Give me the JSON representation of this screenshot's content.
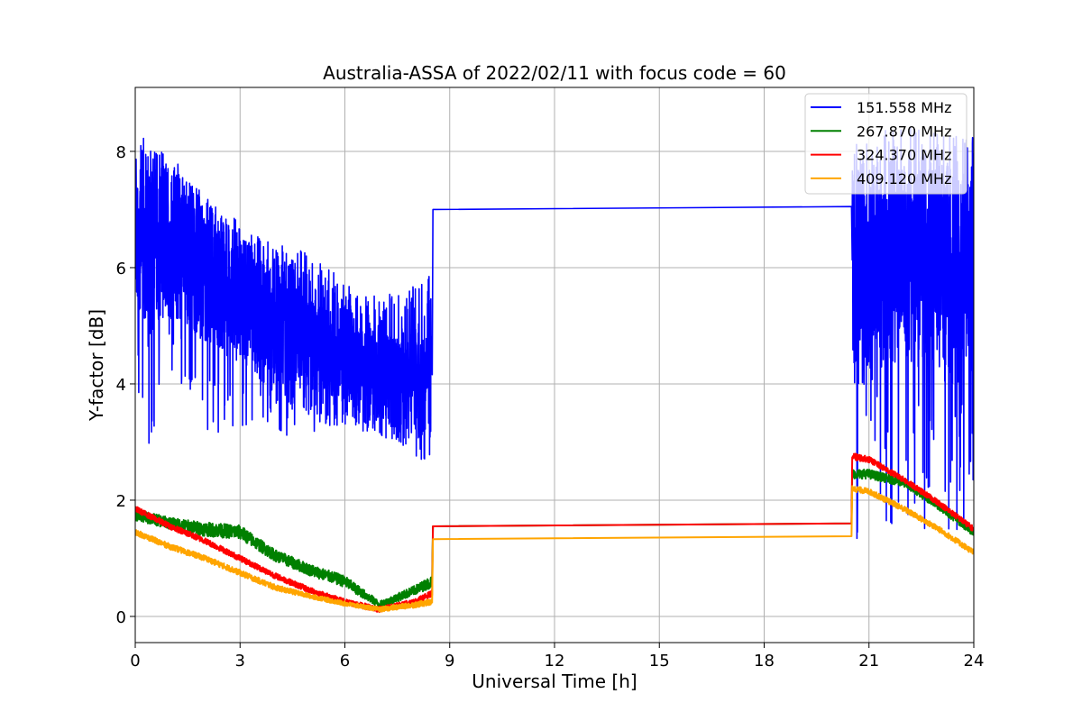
{
  "chart_data": {
    "type": "line",
    "title": "Australia-ASSA of 2022/02/11 with focus code = 60",
    "xlabel": "Universal Time [h]",
    "ylabel": "Y-factor [dB]",
    "xlim": [
      0,
      24
    ],
    "ylim": [
      -0.45,
      9.1
    ],
    "xticks": [
      0,
      3,
      6,
      9,
      12,
      15,
      18,
      21,
      24
    ],
    "yticks": [
      0,
      2,
      4,
      6,
      8
    ],
    "grid": true,
    "legend_position": "top-right",
    "series": [
      {
        "name": "151.558 MHz",
        "color": "#0000ff",
        "x": [
          0,
          1,
          2,
          3,
          4,
          5,
          6,
          7,
          8,
          8.5,
          8.52,
          20.5,
          20.52,
          21,
          22,
          23,
          24
        ],
        "y": [
          6.7,
          6.5,
          6.0,
          5.6,
          5.1,
          4.8,
          4.5,
          4.3,
          4.2,
          4.4,
          7.0,
          7.05,
          6.2,
          6.3,
          6.4,
          6.3,
          6.2
        ],
        "noise_low": [
          1.9,
          1.5,
          1.4,
          1.1,
          1.0,
          0.8,
          0.6,
          0.6,
          0.6,
          0.5,
          0,
          0,
          2.5,
          2.3,
          2.3,
          2.3,
          2.3
        ],
        "noise_high": [
          1.6,
          1.6,
          1.4,
          1.3,
          1.5,
          1.6,
          1.4,
          1.3,
          1.7,
          1.9,
          0,
          0,
          1.8,
          1.7,
          1.8,
          1.7,
          1.7
        ]
      },
      {
        "name": "267.870 MHz",
        "color": "#008000",
        "x": [
          0,
          1,
          2,
          3,
          4,
          5,
          6,
          7,
          8,
          8.5,
          8.52,
          20.5,
          20.52,
          21,
          22,
          23,
          24
        ],
        "y": [
          1.75,
          1.6,
          1.5,
          1.45,
          1.05,
          0.8,
          0.6,
          0.2,
          0.45,
          0.6,
          1.55,
          1.6,
          2.45,
          2.45,
          2.3,
          1.9,
          1.45
        ],
        "noise": [
          0.1,
          0.1,
          0.12,
          0.12,
          0.1,
          0.1,
          0.1,
          0.06,
          0.08,
          0.1,
          0,
          0,
          0.08,
          0.08,
          0.07,
          0.07,
          0.07
        ]
      },
      {
        "name": "324.370 MHz",
        "color": "#ff0000",
        "x": [
          0,
          1,
          2,
          3,
          4,
          5,
          6,
          7,
          8,
          8.5,
          8.52,
          20.5,
          20.52,
          21,
          22,
          23,
          24
        ],
        "y": [
          1.85,
          1.55,
          1.3,
          1.0,
          0.7,
          0.45,
          0.25,
          0.12,
          0.25,
          0.4,
          1.55,
          1.6,
          2.75,
          2.7,
          2.35,
          1.95,
          1.5
        ],
        "noise": [
          0.05,
          0.05,
          0.05,
          0.05,
          0.05,
          0.05,
          0.05,
          0.05,
          0.05,
          0.05,
          0,
          0,
          0.06,
          0.05,
          0.05,
          0.05,
          0.05
        ]
      },
      {
        "name": "409.120 MHz",
        "color": "#ffa500",
        "x": [
          0,
          1,
          2,
          3,
          4,
          5,
          6,
          7,
          8,
          8.5,
          8.52,
          20.5,
          20.52,
          21,
          22,
          23,
          24
        ],
        "y": [
          1.45,
          1.2,
          1.0,
          0.75,
          0.5,
          0.35,
          0.22,
          0.12,
          0.2,
          0.25,
          1.33,
          1.38,
          2.2,
          2.15,
          1.85,
          1.5,
          1.1
        ],
        "noise": [
          0.05,
          0.05,
          0.05,
          0.05,
          0.05,
          0.04,
          0.04,
          0.04,
          0.05,
          0.05,
          0,
          0,
          0.05,
          0.05,
          0.05,
          0.05,
          0.05
        ]
      }
    ]
  }
}
